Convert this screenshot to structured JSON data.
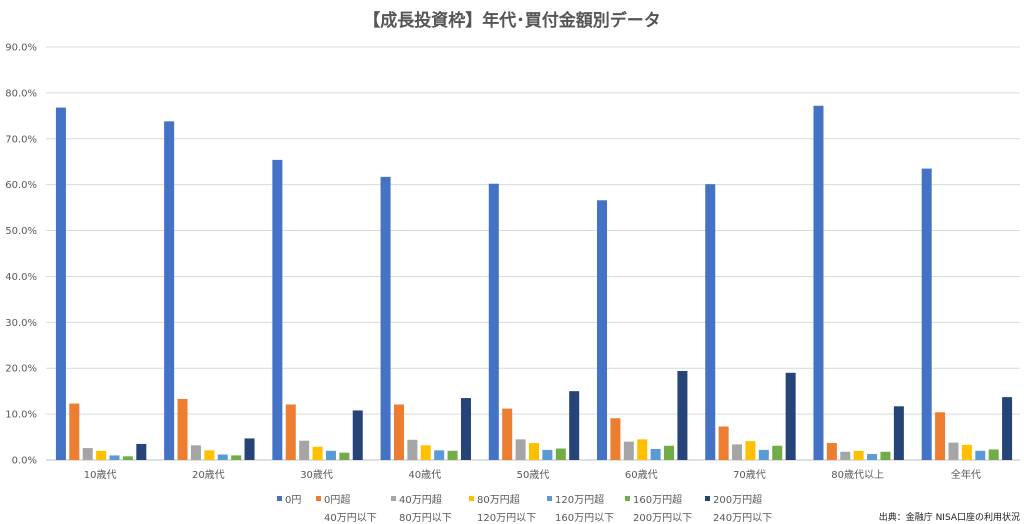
{
  "chart_data": {
    "type": "bar",
    "title": "【成長投資枠】年代･買付金額別データ",
    "ylim": [
      0,
      90
    ],
    "yticks": [
      "0.0%",
      "10.0%",
      "20.0%",
      "30.0%",
      "40.0%",
      "50.0%",
      "60.0%",
      "70.0%",
      "80.0%",
      "90.0%"
    ],
    "grid": true,
    "legend_position": "bottom",
    "categories": [
      "10歳代",
      "20歳代",
      "30歳代",
      "40歳代",
      "50歳代",
      "60歳代",
      "70歳代",
      "80歳代以上",
      "全年代"
    ],
    "series": [
      {
        "name": "0円",
        "name_line2": "",
        "color": "#4472C4",
        "values": [
          76.8,
          73.8,
          65.4,
          61.7,
          60.2,
          56.6,
          60.1,
          77.2,
          63.5
        ]
      },
      {
        "name": "0円超",
        "name_line2": "40万円以下",
        "color": "#ED7D31",
        "values": [
          12.3,
          13.3,
          12.1,
          12.1,
          11.2,
          9.1,
          7.3,
          3.7,
          10.4
        ]
      },
      {
        "name": "40万円超",
        "name_line2": "80万円以下",
        "color": "#A5A5A5",
        "values": [
          2.6,
          3.2,
          4.2,
          4.4,
          4.5,
          4.0,
          3.4,
          1.8,
          3.8
        ]
      },
      {
        "name": "80万円超",
        "name_line2": "120万円以下",
        "color": "#FFC000",
        "values": [
          2.0,
          2.1,
          2.9,
          3.2,
          3.7,
          4.5,
          4.1,
          2.0,
          3.3
        ]
      },
      {
        "name": "120万円超",
        "name_line2": "160万円以下",
        "color": "#5B9BD5",
        "values": [
          1.0,
          1.2,
          2.0,
          2.1,
          2.2,
          2.4,
          2.2,
          1.3,
          2.0
        ]
      },
      {
        "name": "160万円超",
        "name_line2": "200万円以下",
        "color": "#70AD47",
        "values": [
          0.8,
          1.0,
          1.6,
          2.0,
          2.5,
          3.1,
          3.1,
          1.8,
          2.3
        ]
      },
      {
        "name": "200万円超",
        "name_line2": "240万円以下",
        "color": "#264478",
        "values": [
          3.5,
          4.7,
          10.8,
          13.5,
          15.0,
          19.4,
          19.0,
          11.7,
          13.7
        ]
      }
    ]
  },
  "source": "出典：金融庁 NISA口座の利用状況"
}
